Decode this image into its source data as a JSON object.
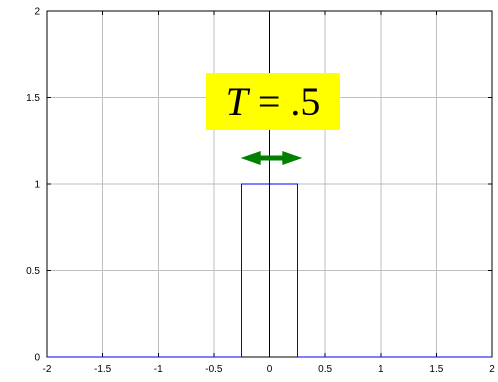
{
  "chart_data": {
    "type": "line",
    "title": "",
    "xlabel": "",
    "ylabel": "",
    "xlim": [
      -2,
      2
    ],
    "ylim": [
      0,
      2
    ],
    "grid": true,
    "xticks": [
      -2,
      -1.5,
      -1,
      -0.5,
      0,
      0.5,
      1,
      1.5,
      2
    ],
    "xtick_labels": [
      "-2",
      "-1.5",
      "-1",
      "-0.5",
      "0",
      "0.5",
      "1",
      "1.5",
      "2"
    ],
    "yticks": [
      0,
      0.5,
      1,
      1.5,
      2
    ],
    "ytick_labels": [
      "0",
      "0.5",
      "1",
      "1.5",
      "2"
    ],
    "series": [
      {
        "x": [
          -2,
          -0.25,
          -0.25,
          0.25,
          0.25,
          2
        ],
        "y": [
          0,
          0,
          1,
          1,
          0,
          0
        ],
        "color": "#0000ff"
      }
    ],
    "annotations": [
      {
        "text_var": "T",
        "text_rest": " = .5",
        "background": "#ffff00",
        "arrow": {
          "type": "double",
          "x_from": -0.25,
          "x_to": 0.25,
          "y": 1.15,
          "color": "#008000"
        }
      }
    ],
    "colors": {
      "axis": "#000000",
      "grid": "#bfbfbf",
      "line": "#0000ff",
      "arrow": "#008000",
      "annotation_bg": "#ffff00"
    }
  }
}
